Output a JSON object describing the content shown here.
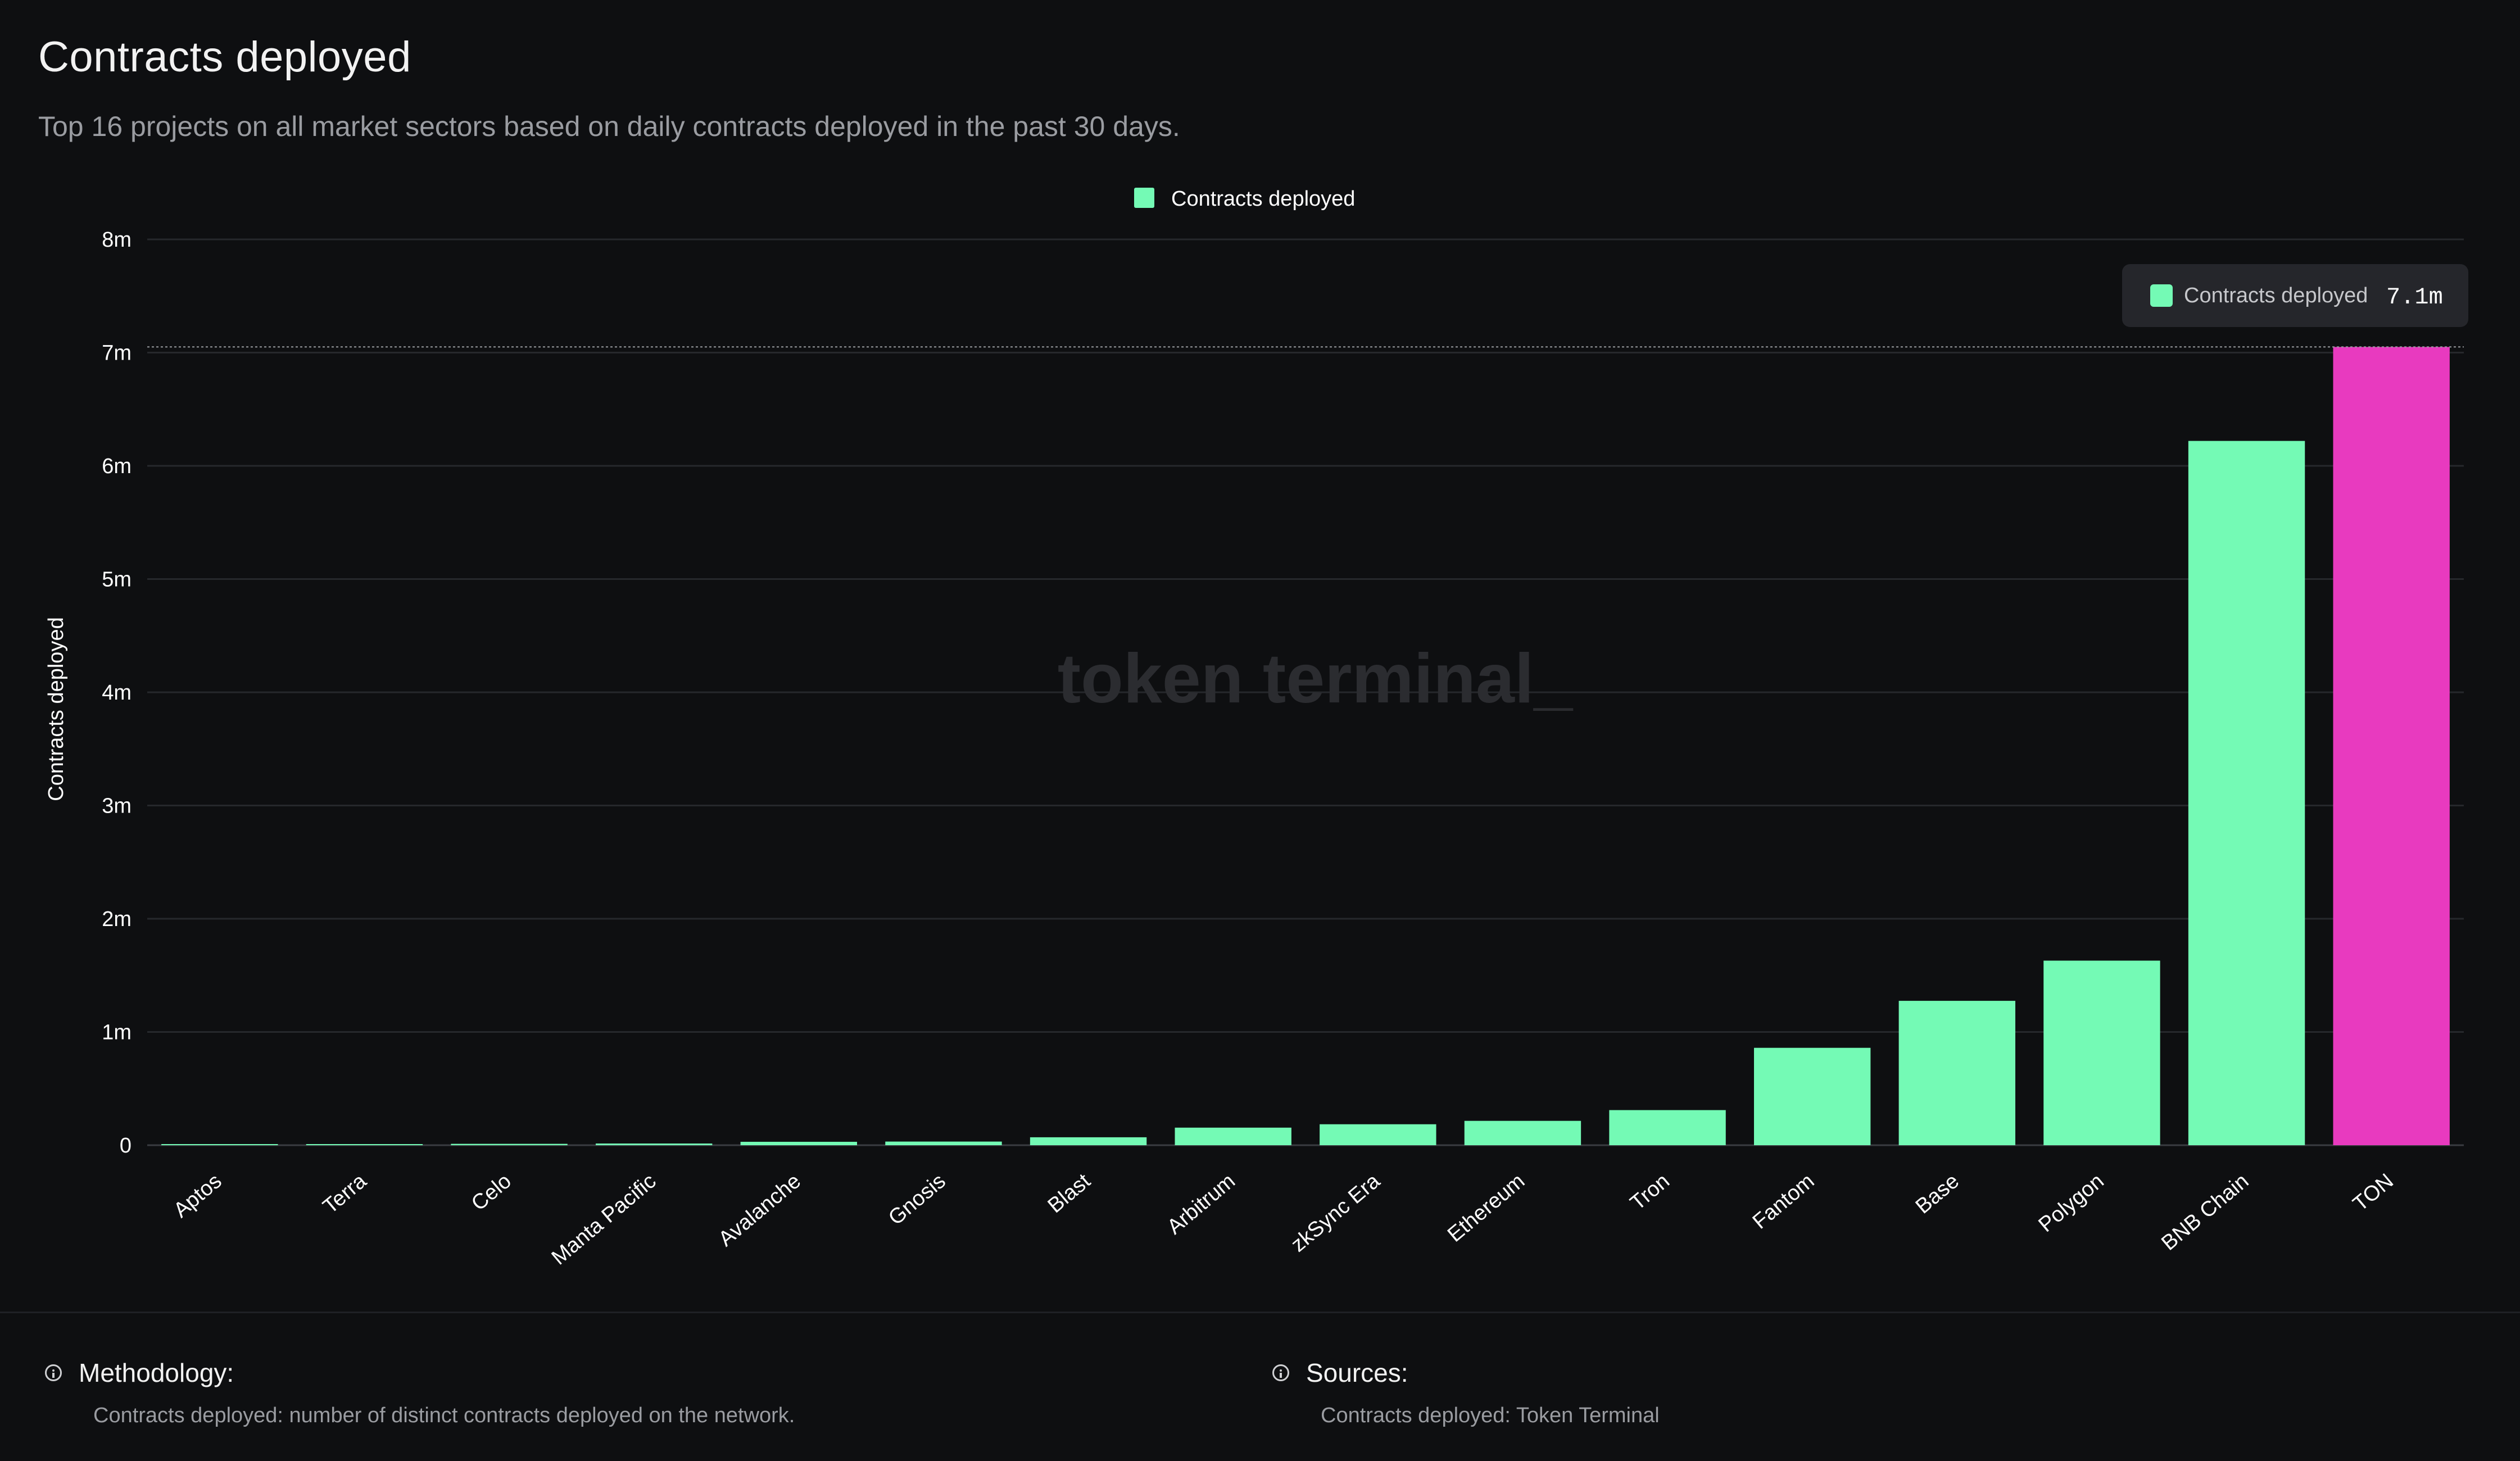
{
  "header": {
    "title": "Contracts deployed",
    "subtitle": "Top 16 projects on all market sectors based on daily contracts deployed in the past 30 days."
  },
  "watermark": "token terminal_",
  "tooltip": {
    "series": "Contracts deployed",
    "value": "7.1m"
  },
  "chart_data": {
    "type": "bar",
    "ylabel": "Contracts deployed",
    "xlabel": "",
    "ylim": [
      0,
      8000000
    ],
    "yticks": [
      {
        "value": 0,
        "label": "0"
      },
      {
        "value": 1000000,
        "label": "1m"
      },
      {
        "value": 2000000,
        "label": "2m"
      },
      {
        "value": 3000000,
        "label": "3m"
      },
      {
        "value": 4000000,
        "label": "4m"
      },
      {
        "value": 5000000,
        "label": "5m"
      },
      {
        "value": 6000000,
        "label": "6m"
      },
      {
        "value": 7000000,
        "label": "7m"
      },
      {
        "value": 8000000,
        "label": "8m"
      }
    ],
    "legend": {
      "position": "top-center",
      "label": "Contracts deployed"
    },
    "grid": true,
    "categories": [
      "Aptos",
      "Terra",
      "Celo",
      "Manta Pacific",
      "Avalanche",
      "Gnosis",
      "Blast",
      "Arbitrum",
      "zkSync Era",
      "Ethereum",
      "Tron",
      "Fantom",
      "Base",
      "Polygon",
      "BNB Chain",
      "TON"
    ],
    "series": [
      {
        "name": "Contracts deployed",
        "color": "#74fab5",
        "values": [
          2000,
          3000,
          12000,
          15000,
          30000,
          32000,
          70000,
          155000,
          185000,
          215000,
          310000,
          860000,
          1275000,
          1630000,
          6220000,
          7050000
        ]
      }
    ],
    "highlight": {
      "category": "TON",
      "color": "#e83abf"
    },
    "crosshair_value": 7050000
  },
  "footer": {
    "methodology_label": "Methodology:",
    "methodology_text": "Contracts deployed: number of distinct contracts deployed on the network.",
    "sources_label": "Sources:",
    "sources_text": "Contracts deployed: Token Terminal"
  }
}
